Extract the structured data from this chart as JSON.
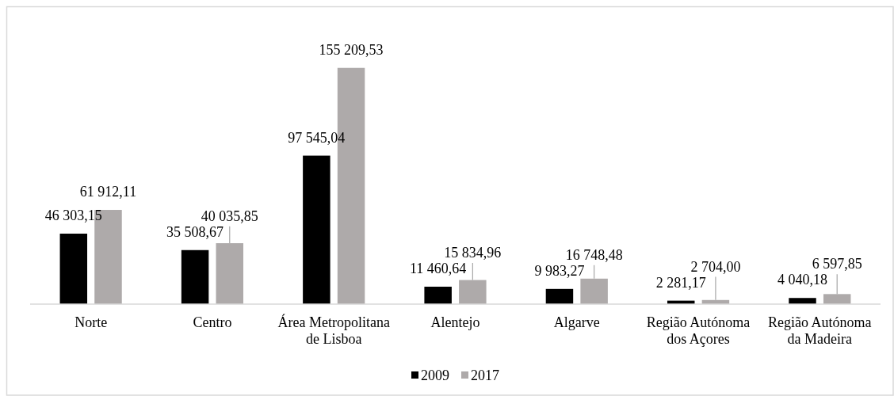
{
  "chart_data": {
    "type": "bar",
    "categories": [
      "Norte",
      "Centro",
      "Área Metropolitana de Lisboa",
      "Alentejo",
      "Algarve",
      "Região Autónoma dos Açores",
      "Região Autónoma da Madeira"
    ],
    "series": [
      {
        "name": "2009",
        "color": "#000000",
        "values": [
          46303.15,
          35508.67,
          97545.04,
          11460.64,
          9983.27,
          2281.17,
          4040.18
        ],
        "value_labels": [
          "46 303,15",
          "35 508,67",
          "97 545,04",
          "11 460,64",
          "9 983,27",
          "2 281,17",
          "4 040,18"
        ]
      },
      {
        "name": "2017",
        "color": "#aeaaaa",
        "values": [
          61912.11,
          40035.85,
          155209.53,
          15834.96,
          16748.48,
          2704.0,
          6597.85
        ],
        "value_labels": [
          "61 912,11",
          "40 035,85",
          "155 209,53",
          "15 834,96",
          "16 748,48",
          "2 704,00",
          "6 597,85"
        ]
      }
    ],
    "legend": "bottom",
    "tick_labels": "x"
  }
}
